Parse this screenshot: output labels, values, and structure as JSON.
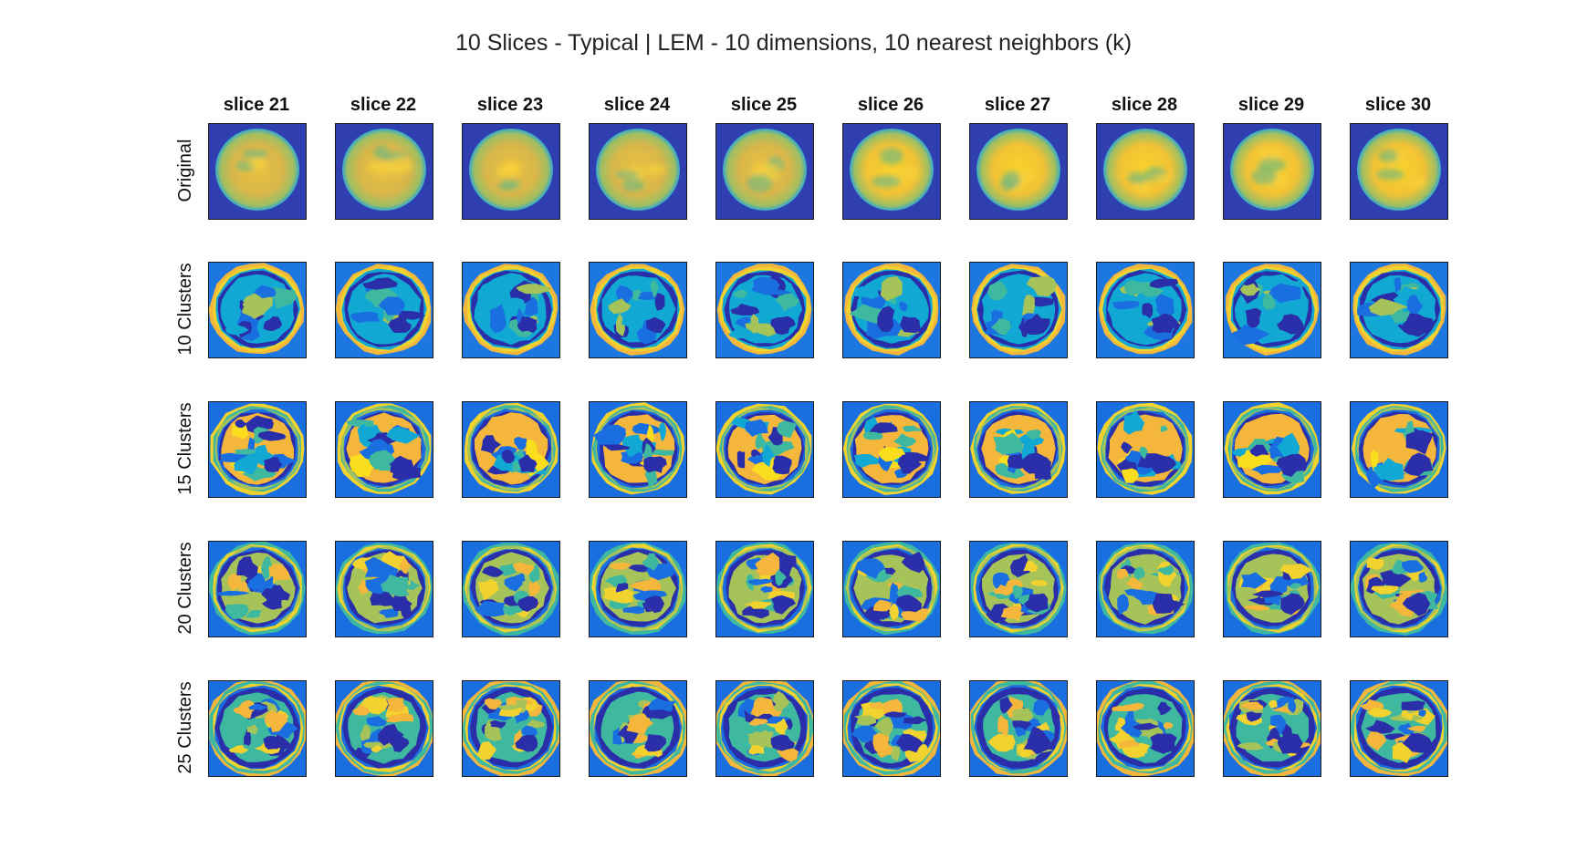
{
  "figure": {
    "title": "10 Slices - Typical | LEM - 10 dimensions,  10 nearest neighbors (k)",
    "columns": [
      "slice 21",
      "slice 22",
      "slice 23",
      "slice 24",
      "slice 25",
      "slice 26",
      "slice 27",
      "slice 28",
      "slice 29",
      "slice 30"
    ],
    "rows": [
      "Original",
      "10 Clusters",
      "15 Clusters",
      "20 Clusters",
      "25 Clusters"
    ]
  },
  "colors": {
    "background": "#2f3fb0",
    "dark_blue": "#2a2ea8",
    "blue": "#1a6fe0",
    "cyan": "#12a8d4",
    "teal": "#3fb8a0",
    "green_yellow": "#a6c35a",
    "yellow": "#f1d22e",
    "orange_yellow": "#f4b63b",
    "bright_yellow": "#fadd1d"
  }
}
